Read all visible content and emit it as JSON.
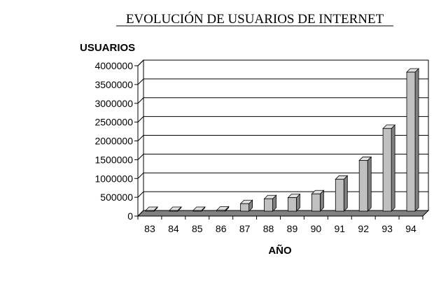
{
  "chart_data": {
    "type": "bar",
    "title": "EVOLUCIÓN DE USUARIOS DE INTERNET",
    "xlabel": "AÑO",
    "ylabel": "USUARIOS",
    "categories": [
      "83",
      "84",
      "85",
      "86",
      "87",
      "88",
      "89",
      "90",
      "91",
      "92",
      "93",
      "94"
    ],
    "values": [
      500,
      1000,
      2300,
      28000,
      200000,
      330000,
      360000,
      460000,
      850000,
      1350000,
      2200000,
      3700000
    ],
    "ylim": [
      0,
      4000000
    ],
    "yticks": [
      "0",
      "500000",
      "1000000",
      "1500000",
      "2000000",
      "2500000",
      "3000000",
      "3500000",
      "4000000"
    ],
    "grid": true,
    "legend": "none",
    "colors": {
      "bar_front": "#c0c0c0",
      "bar_side": "#808080",
      "bar_top": "#e0e0e0",
      "floor": "#808080",
      "background": "#ffffff"
    }
  }
}
